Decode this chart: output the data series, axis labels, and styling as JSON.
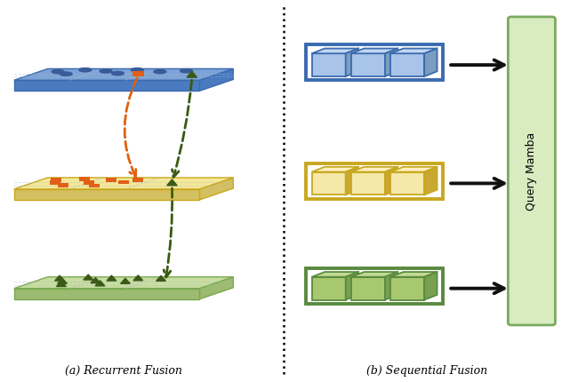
{
  "fig_width": 6.32,
  "fig_height": 4.3,
  "dpi": 100,
  "panel_a_label": "(a) Recurrent Fusion",
  "panel_b_label": "(b) Sequential Fusion",
  "plate_blue_face": "#7BA3D8",
  "plate_blue_side": "#4A7AC0",
  "plate_blue_edge": "#3A6AAF",
  "plate_yellow_face": "#F5E899",
  "plate_yellow_side": "#D4C060",
  "plate_yellow_edge": "#C8A820",
  "plate_green_face": "#C8DDA0",
  "plate_green_side": "#9DBB70",
  "plate_green_edge": "#7AAA50",
  "box_blue_fill": "#A8C4E8",
  "box_blue_top": "#C0D8F0",
  "box_blue_right": "#7A9DC0",
  "box_blue_edge": "#3A6AAF",
  "box_yellow_fill": "#F5E8A8",
  "box_yellow_top": "#FFF0C0",
  "box_yellow_right": "#C8A830",
  "box_yellow_edge": "#C8A820",
  "box_green_fill": "#A8C870",
  "box_green_top": "#C0D890",
  "box_green_right": "#78A050",
  "box_green_edge": "#5A8A40",
  "mamba_fill": "#D8ECC0",
  "mamba_edge": "#7AAA60",
  "arrow_color": "#111111",
  "orange_arrow": "#E06010",
  "green_arrow": "#3A5A10",
  "dot_blue": "#3A5A9A",
  "dot_orange": "#E06018",
  "dot_green": "#3A5A18",
  "grid_line": "#AABBCC"
}
